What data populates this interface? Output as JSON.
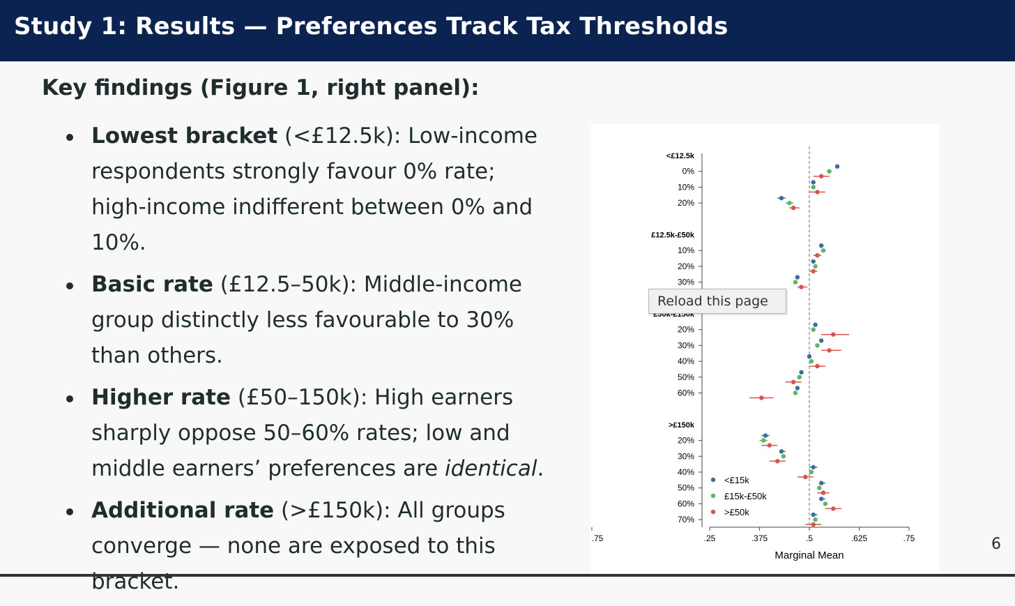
{
  "header": {
    "title": "Study 1: Results — Preferences Track Tax Thresholds"
  },
  "content": {
    "heading": "Key findings (Figure 1, right panel):",
    "bullets": [
      {
        "lead": "Lowest bracket",
        "text": " (<£12.5k): Low-income respondents strongly favour 0% rate; high-income indifferent between 0% and 10%.",
        "em": "",
        "tail": ""
      },
      {
        "lead": "Basic rate",
        "text": " (£12.5–50k): Middle-income group distinctly less favourable to 30% than others.",
        "em": "",
        "tail": ""
      },
      {
        "lead": "Higher rate",
        "text": " (£50–150k): High earners sharply oppose 50–60% rates; low and middle earners’ preferences are ",
        "em": "identical",
        "tail": "."
      },
      {
        "lead": "Additional rate",
        "text": " (>£150k): All groups converge — none are exposed to this bracket.",
        "em": "",
        "tail": ""
      }
    ]
  },
  "tooltip": {
    "text": "Reload this page"
  },
  "page_number": "6",
  "chart_data": {
    "type": "scatter",
    "subtype": "dot-and-whisker",
    "xlabel": "Marginal Mean",
    "xlim": [
      0.25,
      0.75
    ],
    "ref_line": 0.5,
    "ticks": [
      {
        "value": 0.25,
        "label": ".25"
      },
      {
        "value": 0.375,
        "label": ".375"
      },
      {
        "value": 0.5,
        "label": ".5"
      },
      {
        "value": 0.625,
        "label": ".625"
      },
      {
        "value": 0.75,
        "label": ".75"
      }
    ],
    "left_tick_label": ".75",
    "series": [
      {
        "name": "<£15k",
        "color": "#3a6ea5"
      },
      {
        "name": "£15k-£50k",
        "color": "#5cb85c"
      },
      {
        "name": ">£50k",
        "color": "#d9534f"
      }
    ],
    "legend_position": "bottom-left",
    "groups": [
      {
        "label": "<£12.5k",
        "rows": [
          {
            "label": "0%",
            "values": [
              0.57,
              0.55,
              0.53
            ],
            "ci": [
              [
                0.565,
                0.575
              ],
              [
                0.545,
                0.555
              ],
              [
                0.51,
                0.55
              ]
            ]
          },
          {
            "label": "10%",
            "values": [
              0.51,
              0.51,
              0.52
            ],
            "ci": [
              [
                0.505,
                0.515
              ],
              [
                0.505,
                0.515
              ],
              [
                0.5,
                0.54
              ]
            ]
          },
          {
            "label": "20%",
            "values": [
              0.43,
              0.45,
              0.46
            ],
            "ci": [
              [
                0.42,
                0.44
              ],
              [
                0.44,
                0.46
              ],
              [
                0.45,
                0.475
              ]
            ]
          }
        ]
      },
      {
        "label": "£12.5k-£50k",
        "rows": [
          {
            "label": "10%",
            "values": [
              0.53,
              0.535,
              0.52
            ],
            "ci": [
              [
                0.525,
                0.535
              ],
              [
                0.53,
                0.54
              ],
              [
                0.51,
                0.53
              ]
            ]
          },
          {
            "label": "20%",
            "values": [
              0.51,
              0.515,
              0.51
            ],
            "ci": [
              [
                0.505,
                0.515
              ],
              [
                0.51,
                0.52
              ],
              [
                0.5,
                0.52
              ]
            ]
          },
          {
            "label": "30%",
            "values": [
              0.47,
              0.465,
              0.48
            ],
            "ci": [
              [
                0.465,
                0.475
              ],
              [
                0.46,
                0.47
              ],
              [
                0.47,
                0.495
              ]
            ]
          }
        ]
      },
      {
        "label": "£50k-£150k",
        "rows": [
          {
            "label": "20%",
            "values": [
              0.515,
              0.51,
              0.56
            ],
            "ci": [
              [
                0.51,
                0.52
              ],
              [
                0.505,
                0.515
              ],
              [
                0.53,
                0.6
              ]
            ]
          },
          {
            "label": "30%",
            "values": [
              0.53,
              0.52,
              0.55
            ],
            "ci": [
              [
                0.525,
                0.535
              ],
              [
                0.515,
                0.525
              ],
              [
                0.53,
                0.58
              ]
            ]
          },
          {
            "label": "40%",
            "values": [
              0.5,
              0.505,
              0.52
            ],
            "ci": [
              [
                0.495,
                0.505
              ],
              [
                0.5,
                0.51
              ],
              [
                0.5,
                0.54
              ]
            ]
          },
          {
            "label": "50%",
            "values": [
              0.48,
              0.475,
              0.46
            ],
            "ci": [
              [
                0.475,
                0.485
              ],
              [
                0.47,
                0.48
              ],
              [
                0.44,
                0.48
              ]
            ]
          },
          {
            "label": "60%",
            "values": [
              0.47,
              0.465,
              0.38
            ],
            "ci": [
              [
                0.465,
                0.475
              ],
              [
                0.46,
                0.47
              ],
              [
                0.35,
                0.41
              ]
            ]
          }
        ]
      },
      {
        "label": ">£150k",
        "rows": [
          {
            "label": "20%",
            "values": [
              0.39,
              0.385,
              0.4
            ],
            "ci": [
              [
                0.38,
                0.4
              ],
              [
                0.375,
                0.395
              ],
              [
                0.38,
                0.42
              ]
            ]
          },
          {
            "label": "30%",
            "values": [
              0.43,
              0.435,
              0.42
            ],
            "ci": [
              [
                0.425,
                0.44
              ],
              [
                0.43,
                0.44
              ],
              [
                0.4,
                0.44
              ]
            ]
          },
          {
            "label": "40%",
            "values": [
              0.51,
              0.505,
              0.49
            ],
            "ci": [
              [
                0.5,
                0.52
              ],
              [
                0.5,
                0.51
              ],
              [
                0.47,
                0.51
              ]
            ]
          },
          {
            "label": "50%",
            "values": [
              0.53,
              0.525,
              0.535
            ],
            "ci": [
              [
                0.525,
                0.54
              ],
              [
                0.52,
                0.53
              ],
              [
                0.52,
                0.55
              ]
            ]
          },
          {
            "label": "60%",
            "values": [
              0.53,
              0.54,
              0.56
            ],
            "ci": [
              [
                0.525,
                0.54
              ],
              [
                0.535,
                0.545
              ],
              [
                0.54,
                0.58
              ]
            ]
          },
          {
            "label": "70%",
            "values": [
              0.51,
              0.515,
              0.51
            ],
            "ci": [
              [
                0.505,
                0.52
              ],
              [
                0.51,
                0.52
              ],
              [
                0.49,
                0.53
              ]
            ]
          }
        ]
      }
    ]
  }
}
